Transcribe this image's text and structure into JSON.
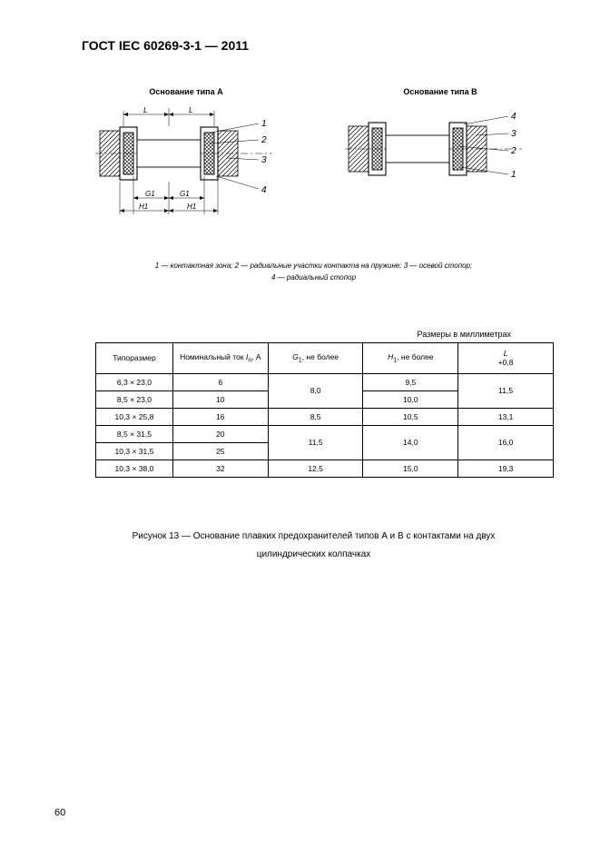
{
  "header": {
    "title": "ГОСТ IEC 60269-3-1 — 2011"
  },
  "diagrams": {
    "typeA": {
      "label": "Основание типа А"
    },
    "typeB": {
      "label": "Основание типа В"
    },
    "leaders": [
      "1",
      "2",
      "3",
      "4"
    ],
    "dims": {
      "L": "L",
      "G1": "G1",
      "H1": "H1"
    },
    "colors": {
      "stroke": "#000000",
      "hatch": "#000000",
      "crosshatch": "#000000",
      "bg": "#ffffff"
    }
  },
  "legend": {
    "line1": "1 — контактная зона; 2 — радиальные участки контакта на пружине; 3 — осевой стопор;",
    "line2": "4 — радиальный стопор"
  },
  "table": {
    "units": "Размеры в миллиметрах",
    "headers": {
      "col1": "Типоразмер",
      "col2_pre": "Номинальный ток ",
      "col2_sym": "I",
      "col2_sub": "n",
      "col2_post": ", А",
      "col3_sym": "G",
      "col3_sub": "1",
      "col3_post": ", не более",
      "col4_sym": "H",
      "col4_sub": "1",
      "col4_post": ", не более",
      "col5_sym": "L",
      "col5_tol": "+0,8"
    },
    "rows": [
      {
        "size": "6,3 × 23,0",
        "in": "6",
        "g1": "8,0",
        "g1span": 2,
        "h1": "9,5",
        "l": "11,5",
        "lspan": 2
      },
      {
        "size": "8,5 × 23,0",
        "in": "10",
        "g1": null,
        "h1": "10,0",
        "l": null
      },
      {
        "size": "10,3 × 25,8",
        "in": "16",
        "g1": "8,5",
        "g1span": 1,
        "h1": "10,5",
        "l": "13,1",
        "lspan": 1
      },
      {
        "size": "8,5 × 31,5",
        "in": "20",
        "g1": "11,5",
        "g1span": 2,
        "h1": "14,0",
        "h1span": 2,
        "l": "16,0",
        "lspan": 2
      },
      {
        "size": "10,3 × 31,5",
        "in": "25",
        "g1": null,
        "h1": null,
        "l": null
      },
      {
        "size": "10,3 × 38,0",
        "in": "32",
        "g1": "12,5",
        "g1span": 1,
        "h1": "15,0",
        "l": "19,3",
        "lspan": 1
      }
    ]
  },
  "figureCaption": "Рисунок 13 — Основание плавких предохранителей типов А и В с контактами на двух цилиндрических колпачках",
  "pageNumber": "60"
}
